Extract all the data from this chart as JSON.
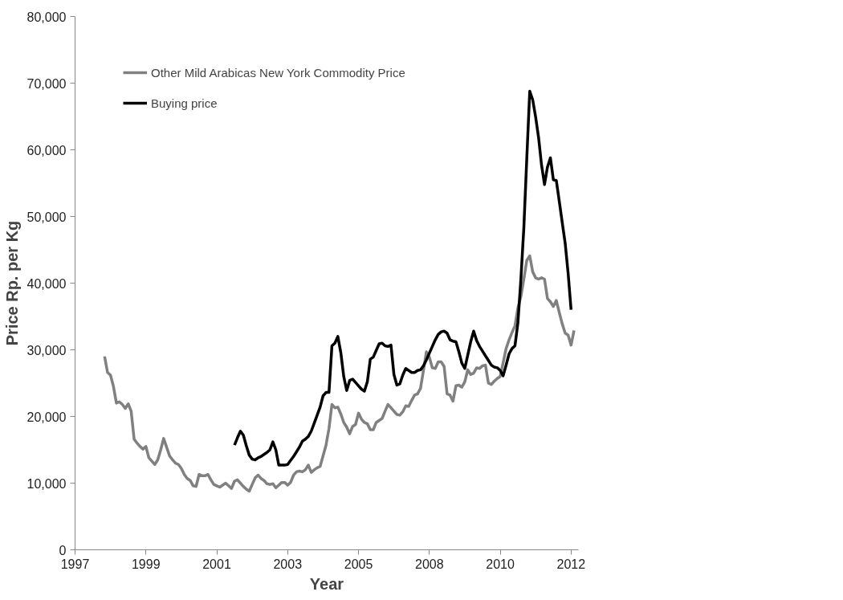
{
  "chart_data": {
    "type": "line",
    "xlabel": "Year",
    "ylabel": "Price Rp. per Kg",
    "categories": [
      "1997",
      null,
      null,
      null,
      null,
      null,
      null,
      null,
      null,
      null,
      null,
      null,
      null,
      null,
      null,
      null,
      null,
      null,
      null,
      null,
      null,
      null,
      null,
      null,
      "1999",
      null,
      null,
      null,
      null,
      null,
      null,
      null,
      null,
      null,
      null,
      null,
      null,
      null,
      null,
      null,
      null,
      null,
      null,
      null,
      null,
      null,
      null,
      null,
      "2001",
      null,
      null,
      null,
      null,
      null,
      null,
      null,
      null,
      null,
      null,
      null,
      null,
      null,
      null,
      null,
      null,
      null,
      null,
      null,
      null,
      null,
      null,
      null,
      "2003",
      null,
      null,
      null,
      null,
      null,
      null,
      null,
      null,
      null,
      null,
      null,
      null,
      null,
      null,
      null,
      null,
      null,
      null,
      null,
      null,
      null,
      null,
      null,
      "2005",
      null,
      null,
      null,
      null,
      null,
      null,
      null,
      null,
      null,
      null,
      null,
      null,
      null,
      null,
      null,
      null,
      null,
      null,
      null,
      null,
      null,
      null,
      null,
      "2008",
      null,
      null,
      null,
      null,
      null,
      null,
      null,
      null,
      null,
      null,
      null,
      null,
      null,
      null,
      null,
      null,
      null,
      null,
      null,
      null,
      null,
      null,
      null,
      "2010",
      null,
      null,
      null,
      null,
      null,
      null,
      null,
      null,
      null,
      null,
      null,
      null,
      null,
      null,
      null,
      null,
      null,
      null,
      null,
      null,
      null,
      null,
      null,
      "2012",
      null,
      null
    ],
    "ylim": [
      0,
      80000
    ],
    "yticks": [
      {
        "value": 0,
        "label": "0"
      },
      {
        "value": 10000,
        "label": "10,000"
      },
      {
        "value": 20000,
        "label": "20,000"
      },
      {
        "value": 30000,
        "label": "30,000"
      },
      {
        "value": 40000,
        "label": "40,000"
      },
      {
        "value": 50000,
        "label": "50,000"
      },
      {
        "value": 60000,
        "label": "60,000"
      },
      {
        "value": 70000,
        "label": "70,000"
      },
      {
        "value": 80000,
        "label": "80,000"
      }
    ],
    "grid": false,
    "legend": "top left",
    "marker": "none",
    "line_style": "solid",
    "series": [
      {
        "name": "Other Mild Arabicas New York Commodity Price",
        "color": "#808080",
        "values": [
          null,
          null,
          null,
          null,
          null,
          null,
          null,
          null,
          null,
          null,
          29000,
          26600,
          26200,
          24500,
          22000,
          22200,
          21800,
          21200,
          21900,
          20800,
          16600,
          16000,
          15500,
          15100,
          15500,
          13800,
          13300,
          12800,
          13500,
          15000,
          16700,
          15400,
          14100,
          13500,
          13000,
          12800,
          12200,
          11300,
          10700,
          10400,
          9600,
          9500,
          11300,
          11100,
          11100,
          11300,
          10500,
          9800,
          9600,
          9400,
          9700,
          10000,
          9600,
          9200,
          10300,
          10500,
          10000,
          9500,
          9100,
          8800,
          9800,
          10800,
          11200,
          10700,
          10400,
          9900,
          9800,
          9900,
          9300,
          9700,
          10100,
          10100,
          9700,
          10100,
          11200,
          11700,
          11800,
          11700,
          12000,
          12700,
          11600,
          12000,
          12300,
          12500,
          14100,
          15700,
          18200,
          21800,
          21300,
          21400,
          20400,
          19100,
          18400,
          17400,
          18500,
          18800,
          20500,
          19600,
          19100,
          18900,
          18000,
          18000,
          19100,
          19400,
          19700,
          20800,
          21800,
          21300,
          20800,
          20300,
          20200,
          20700,
          21600,
          21500,
          22400,
          23200,
          23400,
          24200,
          26900,
          29700,
          28900,
          27300,
          27200,
          28200,
          28200,
          27500,
          23400,
          23200,
          22300,
          24600,
          24700,
          24400,
          25200,
          27000,
          26300,
          26500,
          27300,
          27200,
          27600,
          27700,
          25000,
          24800,
          25300,
          25700,
          26000,
          28100,
          30200,
          31500,
          32600,
          33600,
          36300,
          38000,
          40600,
          43400,
          44100,
          41700,
          40800,
          40600,
          40800,
          40600,
          37700,
          37200,
          36500,
          37400,
          35600,
          33900,
          32500,
          32200,
          30700,
          32900,
          null
        ]
      },
      {
        "name": "Buying price",
        "color": "#000000",
        "values": [
          null,
          null,
          null,
          null,
          null,
          null,
          null,
          null,
          null,
          null,
          null,
          null,
          null,
          null,
          null,
          null,
          null,
          null,
          null,
          null,
          null,
          null,
          null,
          null,
          null,
          null,
          null,
          null,
          null,
          null,
          null,
          null,
          null,
          null,
          null,
          null,
          null,
          null,
          null,
          null,
          null,
          null,
          null,
          null,
          null,
          null,
          null,
          null,
          null,
          null,
          null,
          null,
          null,
          null,
          15700,
          16800,
          17800,
          17200,
          15600,
          14200,
          13600,
          13500,
          13800,
          14000,
          14300,
          14600,
          15000,
          16200,
          15000,
          12700,
          12700,
          12700,
          12800,
          13400,
          14000,
          14700,
          15400,
          16300,
          16600,
          17000,
          17800,
          19000,
          20200,
          21400,
          23100,
          23600,
          23600,
          30600,
          31000,
          32000,
          29600,
          26000,
          23900,
          25400,
          25600,
          25100,
          24600,
          24100,
          23800,
          25200,
          28600,
          28900,
          29900,
          30900,
          31000,
          30600,
          30500,
          30700,
          26300,
          24700,
          24900,
          26200,
          27200,
          26900,
          26600,
          26600,
          26900,
          27000,
          27600,
          28500,
          29500,
          30500,
          31500,
          32300,
          32700,
          32800,
          32500,
          31500,
          31300,
          31200,
          29700,
          28000,
          27200,
          29200,
          31200,
          32800,
          31400,
          30500,
          29800,
          29100,
          28400,
          27700,
          27400,
          27300,
          26900,
          26100,
          27700,
          29400,
          30200,
          30600,
          34100,
          40600,
          48300,
          58700,
          68800,
          67500,
          64900,
          61800,
          57700,
          54800,
          57400,
          58800,
          55500,
          55400,
          52300,
          49100,
          46000,
          41500,
          36000,
          null,
          null
        ]
      }
    ]
  }
}
